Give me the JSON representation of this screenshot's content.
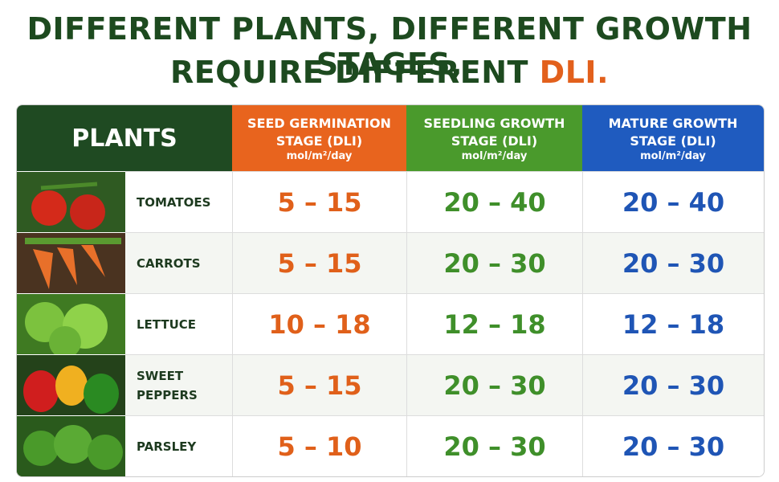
{
  "title": {
    "line1": "DIFFERENT PLANTS, DIFFERENT GROWTH STAGES,",
    "line2": "REQUIRE DIFFERENT",
    "highlight": "DLI."
  },
  "table": {
    "header": {
      "plants": "PLANTS",
      "columns": [
        {
          "title": "SEED GERMINATION STAGE (DLI)",
          "unit": "mol/m²/day"
        },
        {
          "title": "SEEDLING GROWTH STAGE (DLI)",
          "unit": "mol/m²/day"
        },
        {
          "title": "MATURE GROWTH STAGE (DLI)",
          "unit": "mol/m²/day"
        }
      ]
    },
    "rows": [
      {
        "plant": "TOMATOES",
        "values": [
          "5 – 15",
          "20 – 40",
          "20 – 40"
        ]
      },
      {
        "plant": "CARROTS",
        "values": [
          "5 – 15",
          "20 – 30",
          "20 – 30"
        ]
      },
      {
        "plant": "LETTUCE",
        "values": [
          "10 – 18",
          "12 – 18",
          "12 – 18"
        ]
      },
      {
        "plant": "SWEET PEPPERS",
        "values": [
          "5 – 15",
          "20 – 30",
          "20 – 30"
        ]
      },
      {
        "plant": "PARSLEY",
        "values": [
          "5 – 10",
          "20 – 30",
          "20 – 30"
        ]
      }
    ]
  }
}
